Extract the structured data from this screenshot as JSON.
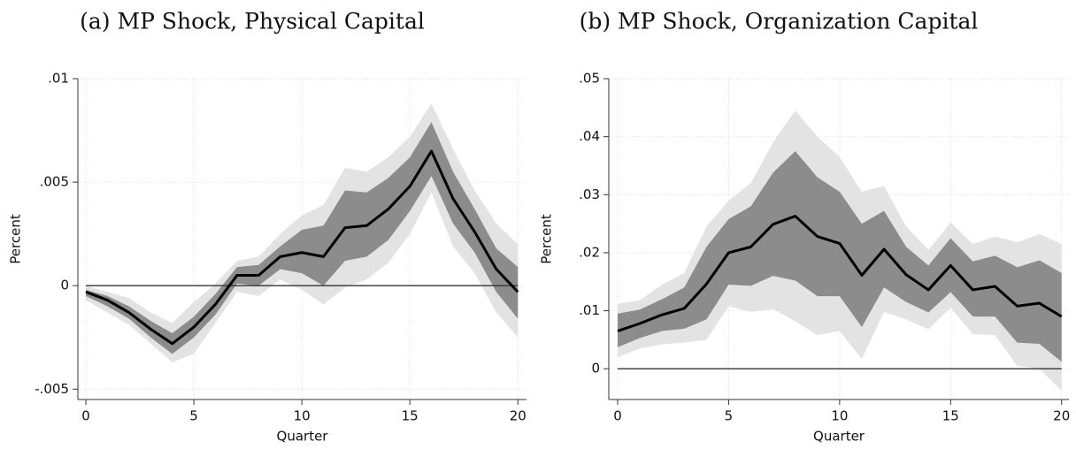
{
  "chart_data": [
    {
      "type": "line",
      "title": "(a) MP Shock, Physical Capital",
      "xlabel": "Quarter",
      "ylabel": "Percent",
      "x": [
        0,
        1,
        2,
        3,
        4,
        5,
        6,
        7,
        8,
        9,
        10,
        11,
        12,
        13,
        14,
        15,
        16,
        17,
        18,
        19,
        20
      ],
      "series": [
        {
          "color": "#000000",
          "values": [
            -0.0003,
            -0.0007,
            -0.0013,
            -0.0021,
            -0.0028,
            -0.002,
            -0.0009,
            0.0005,
            0.0005,
            0.0014,
            0.0016,
            0.0014,
            0.0028,
            0.0029,
            0.0037,
            0.0048,
            0.0065,
            0.0042,
            0.0026,
            0.0008,
            -0.0003
          ]
        }
      ],
      "bands": [
        {
          "color": "#e3e3e3",
          "upper": [
            0,
            -0.0003,
            -0.0006,
            -0.0013,
            -0.0018,
            -0.0008,
            0.0001,
            0.0012,
            0.0014,
            0.0025,
            0.0034,
            0.0039,
            0.0057,
            0.0055,
            0.0062,
            0.0072,
            0.0088,
            0.0066,
            0.0046,
            0.003,
            0.002
          ],
          "lower": [
            -0.0007,
            -0.0013,
            -0.0019,
            -0.0028,
            -0.0037,
            -0.0033,
            -0.0018,
            -0.0003,
            -0.0005,
            0.0003,
            -0.0002,
            -0.0009,
            -0.0001,
            0.0003,
            0.0011,
            0.0025,
            0.0045,
            0.0019,
            0.0006,
            -0.0013,
            -0.0025
          ]
        },
        {
          "color": "#8c8c8c",
          "upper": [
            -0.0002,
            -0.0005,
            -0.001,
            -0.0017,
            -0.0023,
            -0.0015,
            -0.0004,
            0.0009,
            0.001,
            0.0019,
            0.0027,
            0.0029,
            0.0046,
            0.0045,
            0.0052,
            0.0062,
            0.0079,
            0.0055,
            0.0037,
            0.0018,
            0.0009
          ],
          "lower": [
            -0.0005,
            -0.001,
            -0.0016,
            -0.0025,
            -0.0033,
            -0.0025,
            -0.0014,
            0.0001,
            0,
            0.0008,
            0.0006,
            0,
            0.0012,
            0.0014,
            0.0022,
            0.0036,
            0.0053,
            0.003,
            0.0016,
            -0.0003,
            -0.0016
          ]
        }
      ],
      "reference_line": 0,
      "xlim": [
        -0.37,
        20.4
      ],
      "xticks": [
        0,
        5,
        10,
        15,
        20
      ],
      "ylim": [
        -0.0055,
        0.01
      ],
      "yticks": [
        {
          "value": -0.005,
          "label": "-.005"
        },
        0,
        {
          "value": 0.005,
          "label": ".005"
        },
        {
          "value": 0.01,
          "label": ".01"
        }
      ],
      "grid": true
    },
    {
      "type": "line",
      "title": "(b) MP Shock, Organization Capital",
      "xlabel": "Quarter",
      "ylabel": "Percent",
      "x": [
        0,
        1,
        2,
        3,
        4,
        5,
        6,
        7,
        8,
        9,
        10,
        11,
        12,
        13,
        14,
        15,
        16,
        17,
        18,
        19,
        20
      ],
      "series": [
        {
          "color": "#000000",
          "values": [
            0.0065,
            0.0078,
            0.0093,
            0.0104,
            0.0146,
            0.02,
            0.021,
            0.0249,
            0.0263,
            0.0228,
            0.0216,
            0.0161,
            0.0206,
            0.0162,
            0.0136,
            0.0178,
            0.0136,
            0.0142,
            0.0108,
            0.0113,
            0.009
          ]
        }
      ],
      "bands": [
        {
          "color": "#e3e3e3",
          "upper": [
            0.0112,
            0.0118,
            0.0145,
            0.0165,
            0.0245,
            0.029,
            0.032,
            0.039,
            0.0445,
            0.04,
            0.0365,
            0.0305,
            0.0315,
            0.0245,
            0.0205,
            0.0252,
            0.0215,
            0.0228,
            0.0218,
            0.0232,
            0.0215
          ],
          "lower": [
            0.002,
            0.0035,
            0.0042,
            0.0045,
            0.005,
            0.0108,
            0.0098,
            0.0103,
            0.0082,
            0.0058,
            0.0065,
            0.0017,
            0.0098,
            0.0085,
            0.0068,
            0.0105,
            0.006,
            0.0058,
            0.0005,
            0,
            -0.0038
          ]
        },
        {
          "color": "#8c8c8c",
          "upper": [
            0.0095,
            0.0102,
            0.012,
            0.014,
            0.021,
            0.0258,
            0.028,
            0.0338,
            0.0375,
            0.033,
            0.0305,
            0.025,
            0.0272,
            0.021,
            0.0178,
            0.0225,
            0.0185,
            0.0195,
            0.0175,
            0.0187,
            0.0165
          ],
          "lower": [
            0.0037,
            0.0053,
            0.0065,
            0.0069,
            0.0085,
            0.0145,
            0.0143,
            0.016,
            0.0152,
            0.0125,
            0.0125,
            0.0072,
            0.014,
            0.0115,
            0.0097,
            0.0132,
            0.009,
            0.009,
            0.0045,
            0.0043,
            0.0012
          ]
        }
      ],
      "reference_line": 0,
      "xlim": [
        -0.4,
        20.33
      ],
      "xticks": [
        0,
        5,
        10,
        15,
        20
      ],
      "ylim": [
        -0.0053,
        0.05
      ],
      "yticks": [
        0,
        {
          "value": 0.01,
          "label": ".01"
        },
        {
          "value": 0.02,
          "label": ".02"
        },
        {
          "value": 0.03,
          "label": ".03"
        },
        {
          "value": 0.04,
          "label": ".04"
        },
        {
          "value": 0.05,
          "label": ".05"
        }
      ],
      "grid": true
    }
  ]
}
